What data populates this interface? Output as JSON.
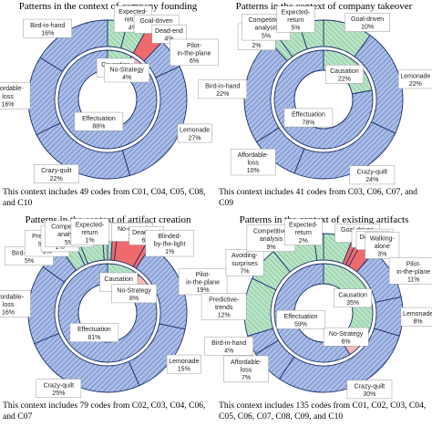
{
  "colors": {
    "effectuation": "#a9bde6",
    "causation": "#b8e4c6",
    "no_strategy": "#f7b9b9",
    "no_strategy_strong": "#ef6b6b",
    "outline": "#1f2f6e",
    "hatch": "#4a64b3"
  },
  "chart_data": [
    {
      "type": "donut",
      "title": "Patterns in the context of company founding",
      "note": "This context includes 49 codes from C01, C04, C05, C08, and C10",
      "inner": [
        {
          "name": "Causation",
          "value": 8,
          "label": "8%",
          "group": "causation"
        },
        {
          "name": "No-Strategy",
          "value": 4,
          "label": "4%",
          "group": "no_strategy"
        },
        {
          "name": "Effectuation",
          "value": 88,
          "label": "88%",
          "group": "effectuation"
        }
      ],
      "outer": [
        {
          "name": "Expected-return",
          "value": 4,
          "label": "4%",
          "group": "causation"
        },
        {
          "name": "Goal-driven",
          "value": 4,
          "label": "4%",
          "group": "causation"
        },
        {
          "name": "Dead-end",
          "value": 4,
          "label": "4%",
          "group": "no_strategy"
        },
        {
          "name": "Pilot-in-the-plane",
          "value": 6,
          "label": "6%",
          "group": "effectuation"
        },
        {
          "name": "Lemonade",
          "value": 27,
          "label": "27%",
          "group": "effectuation"
        },
        {
          "name": "Crazy-quilt",
          "value": 22,
          "label": "22%",
          "group": "effectuation"
        },
        {
          "name": "Affordable-loss",
          "value": 16,
          "label": "16%",
          "group": "effectuation"
        },
        {
          "name": "Bird-in-hand",
          "value": 16,
          "label": "16%",
          "group": "effectuation"
        }
      ]
    },
    {
      "type": "donut",
      "title": "Patterns in the context of company takeover",
      "note": "This context includes 41 codes from C03, C06, C07, and C09",
      "inner": [
        {
          "name": "Causation",
          "value": 22,
          "label": "22%",
          "group": "causation"
        },
        {
          "name": "Effectuation",
          "value": 78,
          "label": "78%",
          "group": "effectuation"
        }
      ],
      "outer": [
        {
          "name": "Goal-driven",
          "value": 10,
          "label": "10%",
          "group": "causation"
        },
        {
          "name": "Lemonade",
          "value": 22,
          "label": "22%",
          "group": "effectuation"
        },
        {
          "name": "Crazy-quilt",
          "value": 24,
          "label": "24%",
          "group": "effectuation"
        },
        {
          "name": "Affordable-loss",
          "value": 10,
          "label": "10%",
          "group": "effectuation"
        },
        {
          "name": "Bird-in-hand",
          "value": 22,
          "label": "22%",
          "group": "effectuation"
        },
        {
          "name": "Avoiding-surprises",
          "value": 2,
          "label": "2%",
          "group": "causation"
        },
        {
          "name": "Competitive-analysis",
          "value": 5,
          "label": "5%",
          "group": "causation"
        },
        {
          "name": "Expected-return",
          "value": 5,
          "label": "5%",
          "group": "causation"
        }
      ]
    },
    {
      "type": "donut",
      "title": "Patterns in the context of artifact creation",
      "note": "This context includes 79 codes from C02, C03, C04, C06, and C07",
      "inner": [
        {
          "name": "Causation",
          "value": 11,
          "label": "11%",
          "group": "causation"
        },
        {
          "name": "No-Strategy",
          "value": 8,
          "label": "8%",
          "group": "no_strategy"
        },
        {
          "name": "Effectuation",
          "value": 81,
          "label": "81%",
          "group": "effectuation"
        }
      ],
      "outer": [
        {
          "name": "Goal-driven",
          "value": 1,
          "label": "1%",
          "group": "causation"
        },
        {
          "name": "No-control",
          "value": 1,
          "label": "1%",
          "group": "no_strategy"
        },
        {
          "name": "Dead-end",
          "value": 6,
          "label": "6%",
          "group": "no_strategy"
        },
        {
          "name": "Blinded-by-the-light",
          "value": 1,
          "label": "1%",
          "group": "no_strategy"
        },
        {
          "name": "Pilot-in-the-plane",
          "value": 19,
          "label": "19%",
          "group": "effectuation"
        },
        {
          "name": "Lemonade",
          "value": 15,
          "label": "15%",
          "group": "effectuation"
        },
        {
          "name": "Crazy-quilt",
          "value": 25,
          "label": "25%",
          "group": "effectuation"
        },
        {
          "name": "Affordable-loss",
          "value": 16,
          "label": "16%",
          "group": "effectuation"
        },
        {
          "name": "Bird-in-hand",
          "value": 5,
          "label": "5%",
          "group": "effectuation"
        },
        {
          "name": "Predictive-trends",
          "value": 3,
          "label": "3%",
          "group": "causation"
        },
        {
          "name": "Avoiding-surprises",
          "value": 1,
          "label": "1%",
          "group": "causation"
        },
        {
          "name": "Competitive-analysis",
          "value": 5,
          "label": "5%",
          "group": "causation"
        },
        {
          "name": "Expected-return",
          "value": 1,
          "label": "1%",
          "group": "causation"
        }
      ]
    },
    {
      "type": "donut",
      "title": "Patterns in the context of existing artifacts",
      "note": "This context includes 135 codes from C01, C02, C03, C04, C05, C06, C07, C08, C09, and C10",
      "inner": [
        {
          "name": "Causation",
          "value": 35,
          "label": "35%",
          "group": "causation"
        },
        {
          "name": "No-Strategy",
          "value": 6,
          "label": "6%",
          "group": "no_strategy"
        },
        {
          "name": "Effectuation",
          "value": 59,
          "label": "59%",
          "group": "effectuation"
        }
      ],
      "outer": [
        {
          "name": "Goal-driven",
          "value": 6,
          "label": "6%",
          "group": "causation"
        },
        {
          "name": "No-control",
          "value": 1,
          "label": "1%",
          "group": "no_strategy"
        },
        {
          "name": "Dead-end",
          "value": 1,
          "label": "1%",
          "group": "no_strategy"
        },
        {
          "name": "Walking-alone",
          "value": 3,
          "label": "3%",
          "group": "no_strategy"
        },
        {
          "name": "Pilot-in-the-plane",
          "value": 11,
          "label": "11%",
          "group": "effectuation"
        },
        {
          "name": "Lemonade",
          "value": 8,
          "label": "8%",
          "group": "effectuation"
        },
        {
          "name": "Crazy-quilt",
          "value": 30,
          "label": "30%",
          "group": "effectuation"
        },
        {
          "name": "Affordable-loss",
          "value": 7,
          "label": "7%",
          "group": "effectuation"
        },
        {
          "name": "Bird-in-hand",
          "value": 4,
          "label": "4%",
          "group": "effectuation"
        },
        {
          "name": "Predictive-trends",
          "value": 12,
          "label": "12%",
          "group": "causation"
        },
        {
          "name": "Avoiding-surprises",
          "value": 7,
          "label": "7%",
          "group": "causation"
        },
        {
          "name": "Competitive-analysis",
          "value": 9,
          "label": "9%",
          "group": "causation"
        },
        {
          "name": "Expected-return",
          "value": 2,
          "label": "2%",
          "group": "causation"
        }
      ]
    }
  ]
}
